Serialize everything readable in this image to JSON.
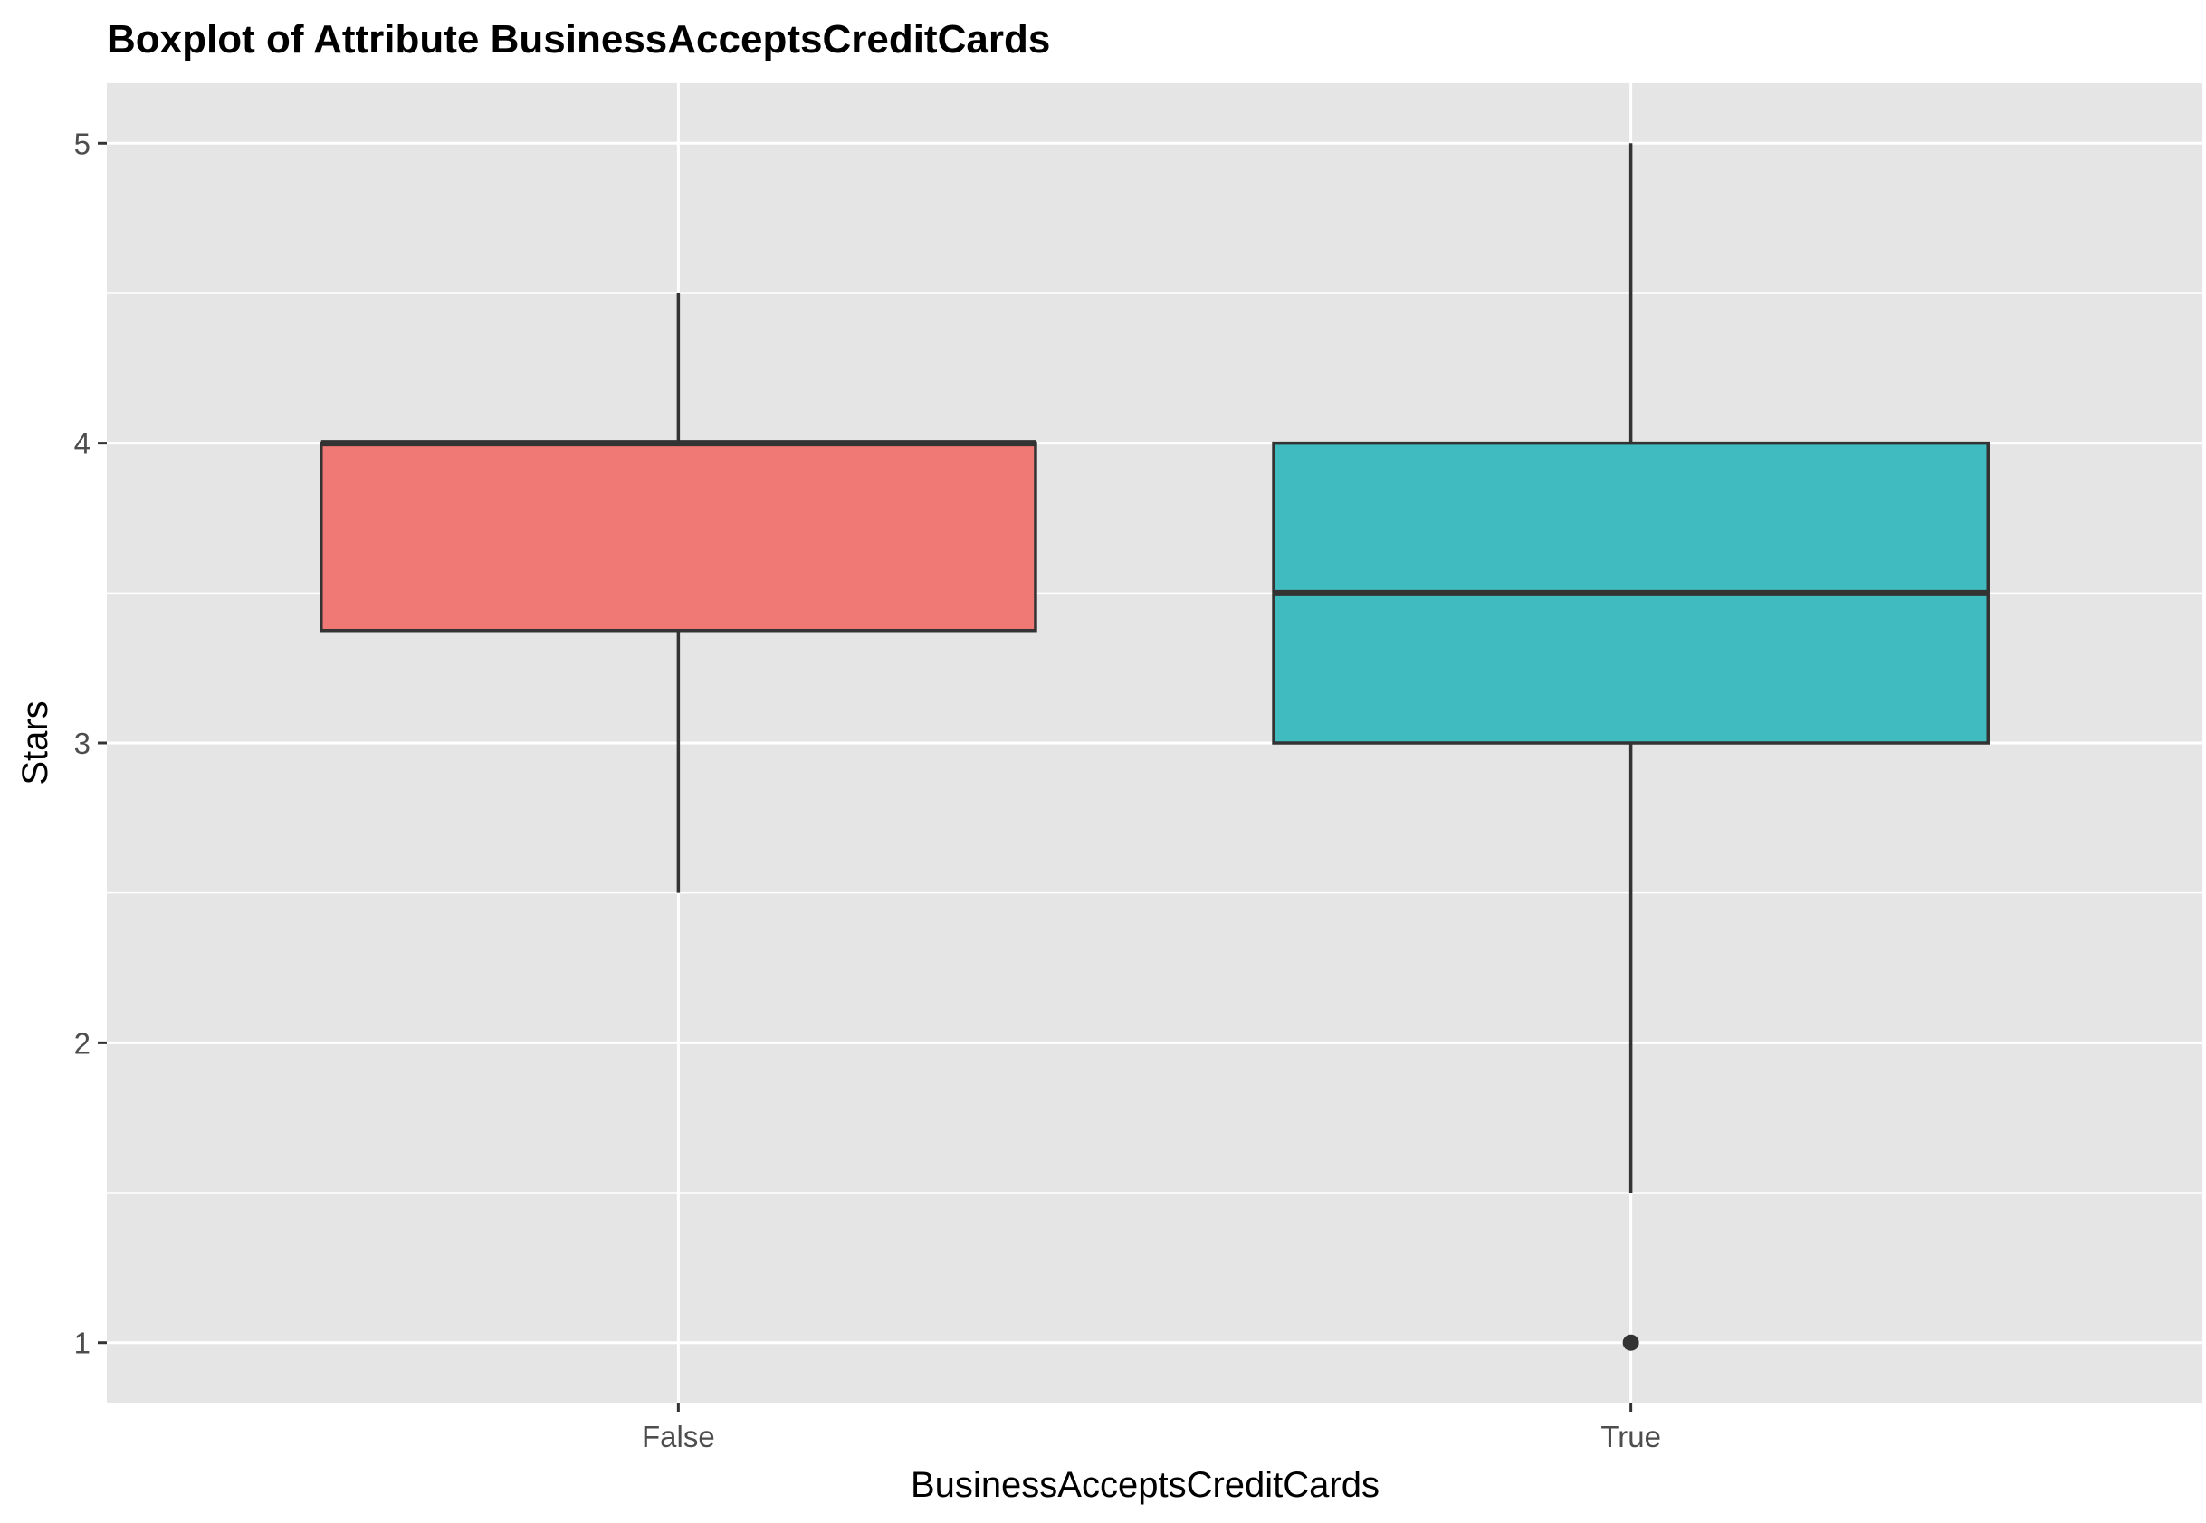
{
  "chart_data": {
    "type": "boxplot",
    "title": "Boxplot of Attribute BusinessAcceptsCreditCards",
    "xlabel": "BusinessAcceptsCreditCards",
    "ylabel": "Stars",
    "ylim": [
      0.8,
      5.2
    ],
    "y_ticks": [
      1,
      2,
      3,
      4,
      5
    ],
    "y_minor_ticks": [
      1.5,
      2.5,
      3.5,
      4.5
    ],
    "categories": [
      "False",
      "True"
    ],
    "grid": true,
    "legend": "none",
    "background_color": "#e5e5e5",
    "grid_color": "#ffffff",
    "boxes": [
      {
        "category": "False",
        "whisker_low": 2.5,
        "q1": 3.375,
        "median": 4.0,
        "q3": 4.0,
        "whisker_high": 4.5,
        "outliers": [],
        "color": "#f07875"
      },
      {
        "category": "True",
        "whisker_low": 1.5,
        "q1": 3.0,
        "median": 3.5,
        "q3": 4.0,
        "whisker_high": 5.0,
        "outliers": [
          1.0
        ],
        "color": "#40bbbf"
      }
    ]
  }
}
